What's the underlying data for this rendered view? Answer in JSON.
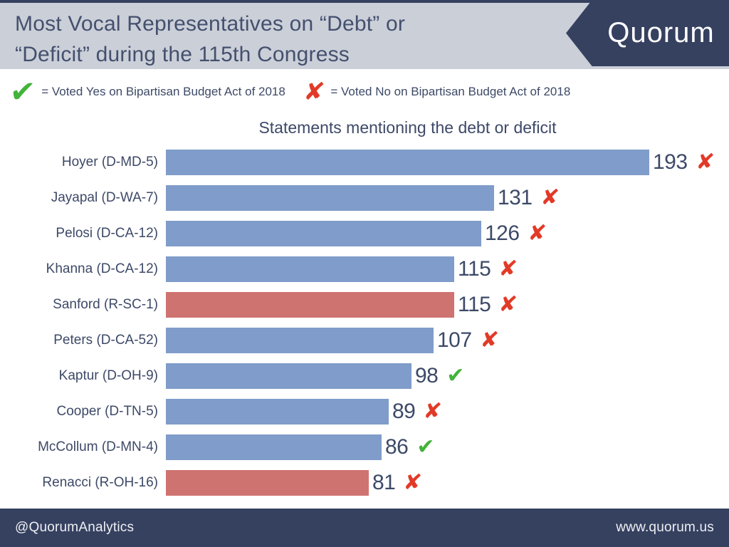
{
  "header": {
    "title_line1": "Most Vocal Representatives on “Debt” or",
    "title_line2": "“Deficit” during the 115th Congress",
    "brand": "Quorum"
  },
  "legend": {
    "yes_label": "= Voted Yes on Bipartisan Budget Act of 2018",
    "no_label": "= Voted No on Bipartisan Budget Act of 2018"
  },
  "icons": {
    "check": "✔",
    "x": "✘"
  },
  "chart_data": {
    "type": "bar",
    "orientation": "horizontal",
    "title": "Statements mentioning the debt or deficit",
    "categories": [
      "Hoyer (D-MD-5)",
      "Jayapal (D-WA-7)",
      "Pelosi (D-CA-12)",
      "Khanna (D-CA-12)",
      "Sanford (R-SC-1)",
      "Peters (D-CA-52)",
      "Kaptur (D-OH-9)",
      "Cooper (D-TN-5)",
      "McCollum (D-MN-4)",
      "Renacci (R-OH-16)"
    ],
    "values": [
      193,
      131,
      126,
      115,
      115,
      107,
      98,
      89,
      86,
      81
    ],
    "votes": [
      "no",
      "no",
      "no",
      "no",
      "no",
      "no",
      "yes",
      "no",
      "yes",
      "no"
    ],
    "parties": [
      "D",
      "D",
      "D",
      "D",
      "R",
      "D",
      "D",
      "D",
      "D",
      "R"
    ],
    "xlim": [
      0,
      193
    ],
    "grid": false,
    "value_labels": true,
    "bar_colors": {
      "D": "#7f9cca",
      "R": "#cf7370"
    }
  },
  "footer": {
    "left": "@QuorumAnalytics",
    "right": "www.quorum.us"
  },
  "colors": {
    "navy": "#364160",
    "header_bg": "#cbcfd8",
    "text_navy": "#3d4967",
    "bar_blue": "#7f9cca",
    "bar_red": "#cf7370",
    "check_green": "#43b33b",
    "x_red": "#e23a28"
  }
}
